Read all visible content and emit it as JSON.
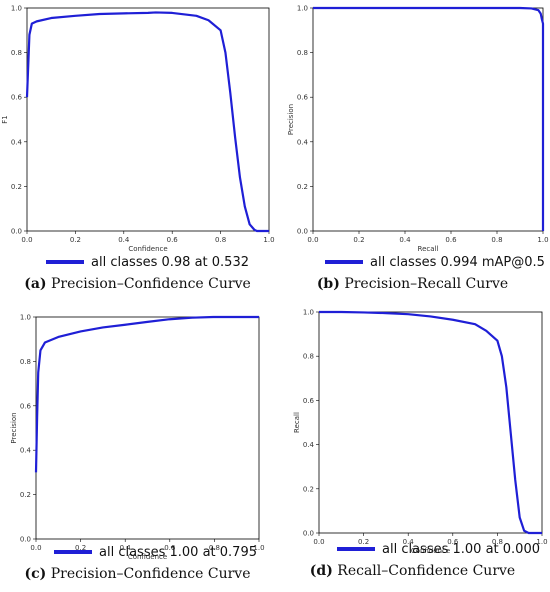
{
  "colors": {
    "curve_main": "#1f1fd6",
    "curve_light": "#6fa8dc",
    "axis": "#000000"
  },
  "chart_data": [
    {
      "id": "a",
      "type": "line",
      "xlabel": "Confidence",
      "ylabel": "F1",
      "xlim": [
        0,
        1
      ],
      "ylim": [
        0,
        1
      ],
      "xticks": [
        "0.0",
        "0.2",
        "0.4",
        "0.6",
        "0.8",
        "1.0"
      ],
      "yticks": [
        "0.0",
        "0.2",
        "0.4",
        "0.6",
        "0.8",
        "1.0"
      ],
      "legend": "all classes 0.98 at 0.532",
      "caption_label": "(a)",
      "caption_text": "Precision–Confidence Curve",
      "series": [
        {
          "x": [
            0,
            0.01,
            0.02,
            0.04,
            0.1,
            0.2,
            0.3,
            0.4,
            0.5,
            0.532,
            0.6,
            0.7,
            0.75,
            0.8,
            0.82,
            0.84,
            0.86,
            0.88,
            0.9,
            0.92,
            0.94,
            0.95,
            0.97,
            1.0
          ],
          "y": [
            0.6,
            0.88,
            0.93,
            0.94,
            0.955,
            0.965,
            0.973,
            0.976,
            0.978,
            0.98,
            0.978,
            0.965,
            0.945,
            0.9,
            0.8,
            0.62,
            0.42,
            0.24,
            0.11,
            0.03,
            0.005,
            0.0,
            0.0,
            0.0
          ]
        }
      ]
    },
    {
      "id": "b",
      "type": "line",
      "xlabel": "Recall",
      "ylabel": "Precision",
      "xlim": [
        0,
        1
      ],
      "ylim": [
        0,
        1
      ],
      "xticks": [
        "0.0",
        "0.2",
        "0.4",
        "0.6",
        "0.8",
        "1.0"
      ],
      "yticks": [
        "0.0",
        "0.2",
        "0.4",
        "0.6",
        "0.8",
        "1.0"
      ],
      "legend": "all classes 0.994 mAP@0.5",
      "caption_label": "(b)",
      "caption_text": "Precision–Recall Curve",
      "series": [
        {
          "x": [
            0,
            0.5,
            0.9,
            0.95,
            0.98,
            0.99,
            0.995,
            1.0,
            1.0
          ],
          "y": [
            1.0,
            1.0,
            1.0,
            0.998,
            0.99,
            0.975,
            0.95,
            0.93,
            0.0
          ]
        }
      ]
    },
    {
      "id": "c",
      "type": "line",
      "xlabel": "Confidence",
      "ylabel": "Precision",
      "xlim": [
        0,
        1
      ],
      "ylim": [
        0,
        1
      ],
      "xticks": [
        "0.0",
        "0.2",
        "0.4",
        "0.6",
        "0.8",
        "1.0"
      ],
      "yticks": [
        "0.0",
        "0.2",
        "0.4",
        "0.6",
        "0.8",
        "1.0"
      ],
      "legend": "all classes 1.00 at 0.795",
      "caption_label": "(c)",
      "caption_text": "Precision–Confidence Curve",
      "series": [
        {
          "x": [
            0,
            0.005,
            0.01,
            0.02,
            0.04,
            0.1,
            0.2,
            0.3,
            0.4,
            0.5,
            0.6,
            0.7,
            0.795,
            0.9,
            1.0
          ],
          "y": [
            0.3,
            0.55,
            0.75,
            0.85,
            0.885,
            0.91,
            0.935,
            0.953,
            0.965,
            0.978,
            0.99,
            0.997,
            1.0,
            1.0,
            1.0
          ]
        }
      ]
    },
    {
      "id": "d",
      "type": "line",
      "xlabel": "Confidence",
      "ylabel": "Recall",
      "xlim": [
        0,
        1
      ],
      "ylim": [
        0,
        1
      ],
      "xticks": [
        "0.0",
        "0.2",
        "0.4",
        "0.6",
        "0.8",
        "1.0"
      ],
      "yticks": [
        "0.0",
        "0.2",
        "0.4",
        "0.6",
        "0.8",
        "1.0"
      ],
      "legend": "all classes 1.00 at 0.000",
      "caption_label": "(d)",
      "caption_text": "Recall–Confidence Curve",
      "series": [
        {
          "x": [
            0,
            0.1,
            0.2,
            0.3,
            0.4,
            0.5,
            0.6,
            0.7,
            0.75,
            0.8,
            0.82,
            0.84,
            0.86,
            0.88,
            0.9,
            0.92,
            0.94,
            1.0
          ],
          "y": [
            1.0,
            1.0,
            0.998,
            0.995,
            0.99,
            0.98,
            0.965,
            0.945,
            0.915,
            0.87,
            0.8,
            0.66,
            0.45,
            0.24,
            0.07,
            0.01,
            0.0,
            0.0
          ]
        }
      ]
    }
  ]
}
